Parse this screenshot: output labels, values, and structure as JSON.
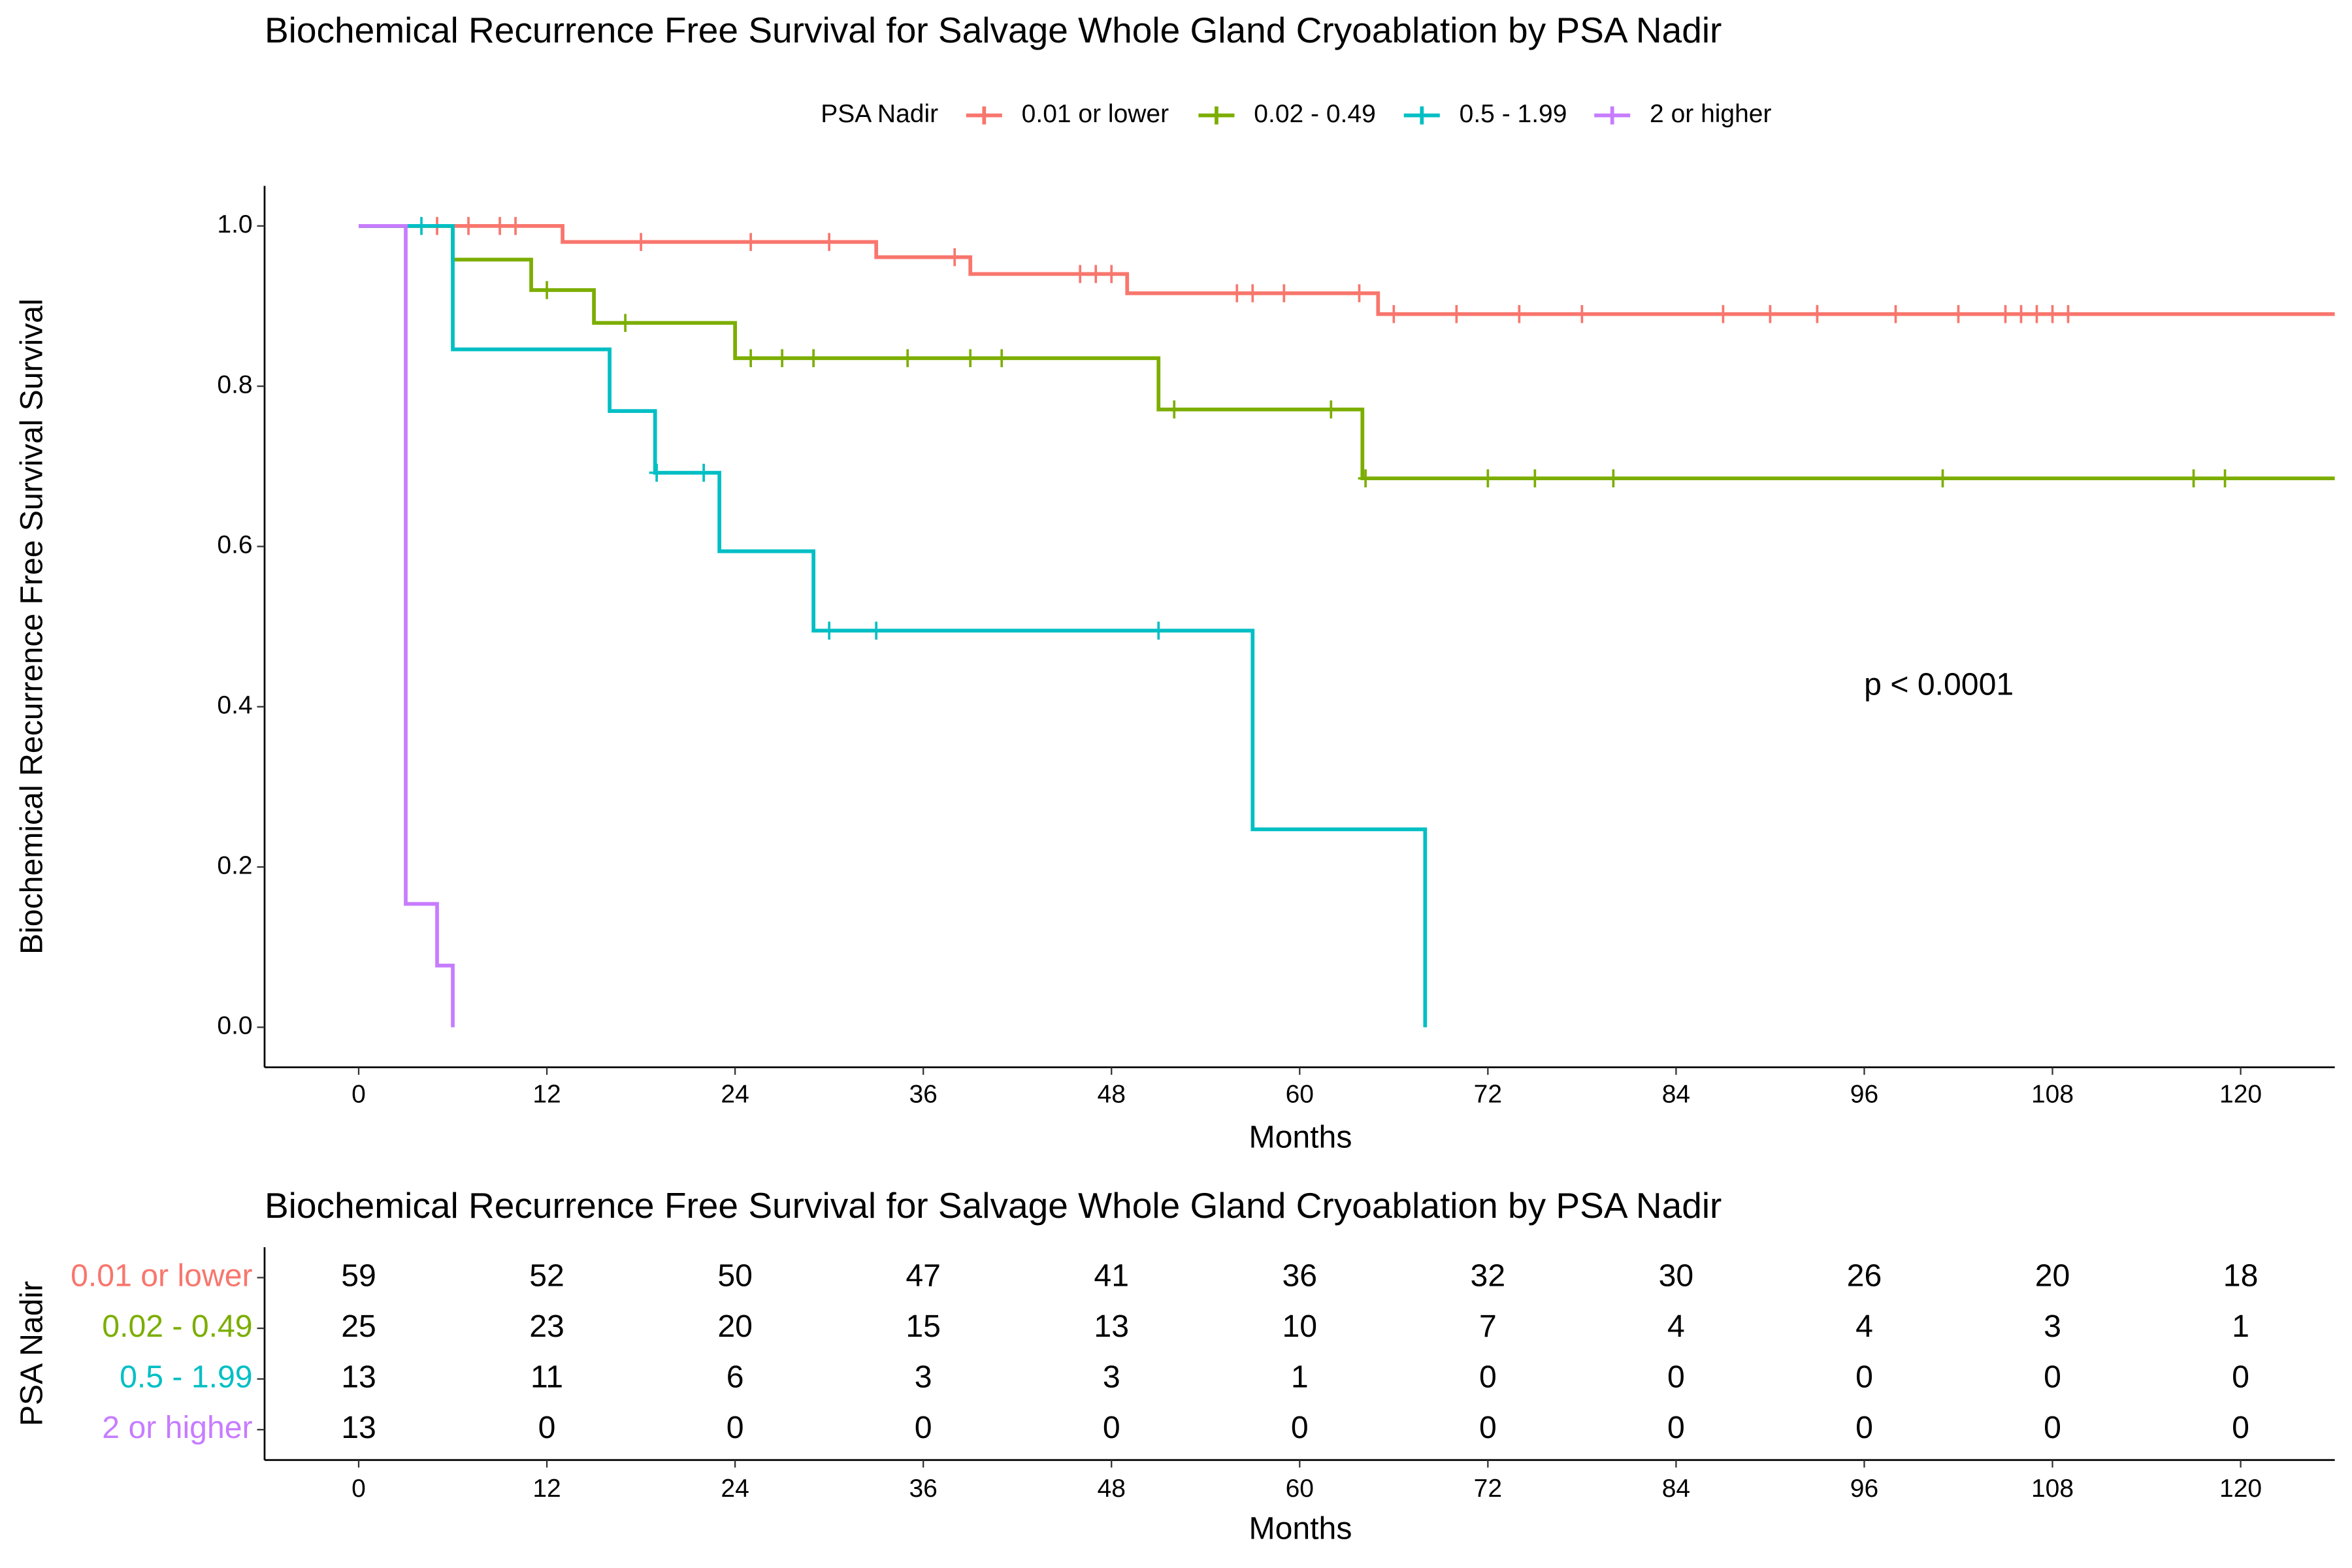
{
  "chart_data": [
    {
      "type": "step",
      "title": "Biochemical Recurrence Free Survival for Salvage Whole Gland Cryoablation by PSA Nadir",
      "xlabel": "Months",
      "ylabel": "Biochemical Recurrence Free Survival Survival",
      "legend_title": "PSA Nadir",
      "legend": "top",
      "annotation": "p < 0.0001",
      "xlim": [
        -6,
        126
      ],
      "ylim": [
        -0.05,
        1.05
      ],
      "xticks": [
        0,
        12,
        24,
        36,
        48,
        60,
        72,
        84,
        96,
        108,
        120
      ],
      "yticks": [
        {
          "value": 0,
          "label": "0.0"
        },
        0.2,
        0.4,
        0.6,
        0.8,
        {
          "value": 1,
          "label": "1.0"
        }
      ],
      "series": [
        {
          "name": "0.01 or lower",
          "color": "#F8766D",
          "x": [
            0,
            13,
            33,
            39,
            49,
            65,
            126
          ],
          "values": [
            1.0,
            0.98,
            0.961,
            0.94,
            0.916,
            0.89,
            0.89
          ],
          "censored_x": [
            5,
            7,
            9,
            10,
            18,
            25,
            30,
            38,
            46,
            47,
            48,
            56,
            57,
            59,
            63.8,
            66,
            70,
            74,
            78,
            87,
            90,
            93,
            98,
            102,
            105,
            106,
            107,
            108,
            109
          ]
        },
        {
          "name": "0.02 - 0.49",
          "color": "#7CAE00",
          "x": [
            0,
            6,
            11,
            15,
            24,
            51,
            64,
            126
          ],
          "values": [
            1.0,
            0.958,
            0.92,
            0.879,
            0.835,
            0.771,
            0.685,
            0.685
          ],
          "censored_x": [
            12,
            17,
            25,
            27,
            29,
            35,
            39,
            41,
            52,
            62,
            64.2,
            72,
            75,
            80,
            101,
            117,
            119
          ]
        },
        {
          "name": "0.5 - 1.99",
          "color": "#00BFC4",
          "x": [
            0,
            6,
            16,
            18.9,
            23,
            29,
            57,
            68
          ],
          "values": [
            1.0,
            0.846,
            0.769,
            0.692,
            0.594,
            0.495,
            0.247,
            0
          ],
          "censored_x": [
            4,
            19,
            22,
            30,
            33,
            51
          ]
        },
        {
          "name": "2 or higher",
          "color": "#C77CFF",
          "x": [
            0,
            3,
            5,
            6
          ],
          "values": [
            1.0,
            0.154,
            0.077,
            0
          ],
          "censored_x": []
        }
      ]
    },
    {
      "type": "table",
      "title": "Biochemical Recurrence Free Survival for Salvage Whole Gland Cryoablation by PSA Nadir",
      "xlabel": "Months",
      "ylabel": "PSA Nadir",
      "xlim": [
        -6,
        126
      ],
      "xticks": [
        0,
        12,
        24,
        36,
        48,
        60,
        72,
        84,
        96,
        108,
        120
      ],
      "x": [
        0,
        12,
        24,
        36,
        48,
        60,
        72,
        84,
        96,
        108,
        120
      ],
      "series": [
        {
          "name": "0.01 or lower",
          "color": "#F8766D",
          "values": [
            59,
            52,
            50,
            47,
            41,
            36,
            32,
            30,
            26,
            20,
            18
          ]
        },
        {
          "name": "0.02 - 0.49",
          "color": "#7CAE00",
          "values": [
            25,
            23,
            20,
            15,
            13,
            10,
            7,
            4,
            4,
            3,
            1
          ]
        },
        {
          "name": "0.5 - 1.99",
          "color": "#00BFC4",
          "values": [
            13,
            11,
            6,
            3,
            3,
            1,
            0,
            0,
            0,
            0,
            0
          ]
        },
        {
          "name": "2 or higher",
          "color": "#C77CFF",
          "values": [
            13,
            0,
            0,
            0,
            0,
            0,
            0,
            0,
            0,
            0,
            0
          ]
        }
      ]
    }
  ]
}
